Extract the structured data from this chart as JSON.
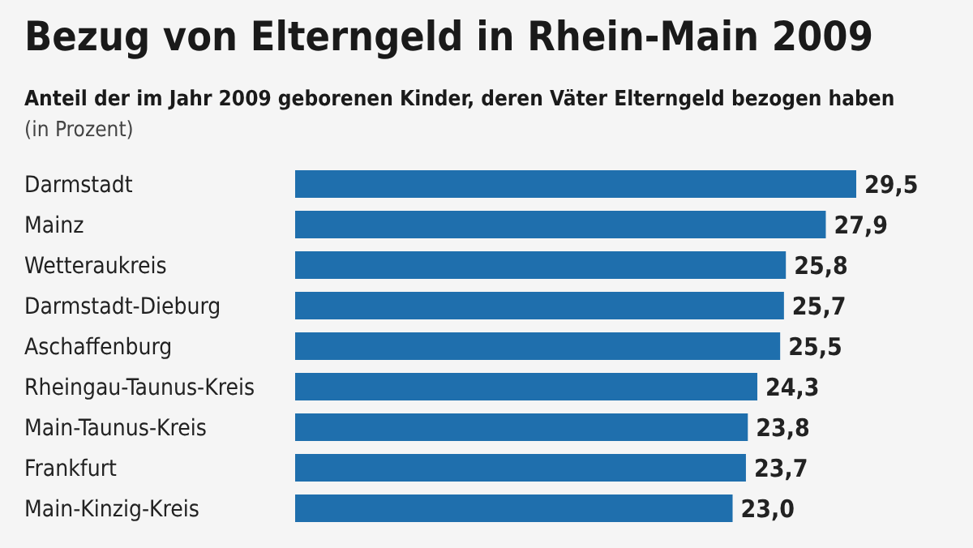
{
  "chart_data": {
    "type": "bar",
    "orientation": "horizontal",
    "title": "Bezug von Elterngeld in Rhein-Main 2009",
    "subtitle": "Anteil der im Jahr 2009 geborenen Kinder, deren Väter Elterngeld bezogen haben",
    "annotations": [
      "(in Prozent)"
    ],
    "categories": [
      "Darmstadt",
      "Mainz",
      "Wetteraukreis",
      "Darmstadt-Dieburg",
      "Aschaffenburg",
      "Rheingau-Taunus-Kreis",
      "Main-Taunus-Kreis",
      "Frankfurt",
      "Main-Kinzig-Kreis"
    ],
    "values": [
      29.5,
      27.9,
      25.8,
      25.7,
      25.5,
      24.3,
      23.8,
      23.7,
      23.0
    ],
    "value_labels": [
      "29,5",
      "27,9",
      "25,8",
      "25,7",
      "25,5",
      "24,3",
      "23,8",
      "23,7",
      "23,0"
    ],
    "color": "#1f6fad"
  }
}
